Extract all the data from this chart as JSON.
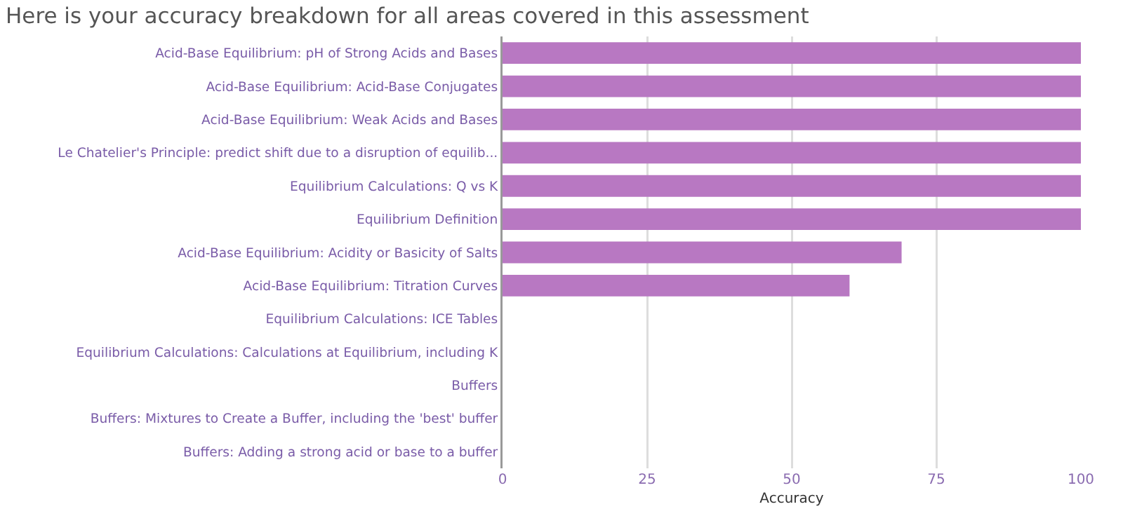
{
  "chart_data": {
    "type": "bar",
    "orientation": "horizontal",
    "title": "Here is your accuracy breakdown for all areas covered in this assessment",
    "xlabel": "Accuracy",
    "categories": [
      "Acid-Base Equilibrium: pH of Strong Acids and Bases",
      "Acid-Base Equilibrium: Acid-Base Conjugates",
      "Acid-Base Equilibrium: Weak Acids and Bases",
      "Le Chatelier's Principle: predict shift due to a disruption of equilib...",
      "Equilibrium Calculations: Q vs K",
      "Equilibrium Definition",
      "Acid-Base Equilibrium: Acidity or Basicity of Salts",
      "Acid-Base Equilibrium: Titration Curves",
      "Equilibrium Calculations: ICE Tables",
      "Equilibrium Calculations: Calculations at Equilibrium, including K",
      "Buffers",
      "Buffers: Mixtures to Create a Buffer, including the 'best' buffer",
      "Buffers: Adding a strong acid or base to a buffer"
    ],
    "values": [
      100,
      100,
      100,
      100,
      100,
      100,
      69,
      60,
      0,
      0,
      0,
      0,
      0
    ],
    "color": "#b878c2",
    "xlim": [
      0,
      100
    ],
    "xticks": [
      0,
      25,
      50,
      75,
      100
    ],
    "grid": "x"
  }
}
